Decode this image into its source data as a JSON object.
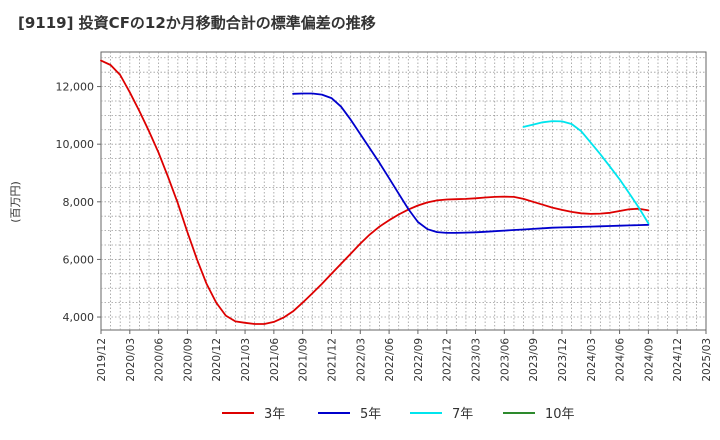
{
  "chart_data": {
    "type": "line",
    "title": "[9119]  投資CFの12か月移動合計の標準偏差の推移",
    "ylabel": "(百万円)",
    "xlabel": "",
    "ylim": [
      3550,
      13200
    ],
    "yticks": [
      4000,
      6000,
      8000,
      10000,
      12000
    ],
    "ytick_labels": [
      "4,000",
      "6,000",
      "8,000",
      "10,000",
      "12,000"
    ],
    "x_range": [
      "2019-12",
      "2025-03"
    ],
    "xtick_labels": [
      "2019/12",
      "2020/03",
      "2020/06",
      "2020/09",
      "2020/12",
      "2021/03",
      "2021/06",
      "2021/09",
      "2021/12",
      "2022/03",
      "2022/06",
      "2022/09",
      "2022/12",
      "2023/03",
      "2023/06",
      "2023/09",
      "2023/12",
      "2024/03",
      "2024/06",
      "2024/09",
      "2024/12",
      "2025/03"
    ],
    "grid": true,
    "legend_position": "bottom",
    "series": [
      {
        "name": "3年",
        "color": "#dd0000",
        "x": [
          "2019-12",
          "2020-01",
          "2020-02",
          "2020-03",
          "2020-04",
          "2020-05",
          "2020-06",
          "2020-07",
          "2020-08",
          "2020-09",
          "2020-10",
          "2020-11",
          "2020-12",
          "2021-01",
          "2021-02",
          "2021-03",
          "2021-04",
          "2021-05",
          "2021-06",
          "2021-07",
          "2021-08",
          "2021-09",
          "2021-10",
          "2021-11",
          "2021-12",
          "2022-01",
          "2022-02",
          "2022-03",
          "2022-04",
          "2022-05",
          "2022-06",
          "2022-07",
          "2022-08",
          "2022-09",
          "2022-10",
          "2022-11",
          "2022-12",
          "2023-01",
          "2023-02",
          "2023-03",
          "2023-04",
          "2023-05",
          "2023-06",
          "2023-07",
          "2023-08",
          "2023-09",
          "2023-10",
          "2023-11",
          "2023-12",
          "2024-01",
          "2024-02",
          "2024-03",
          "2024-04",
          "2024-05",
          "2024-06",
          "2024-07",
          "2024-08",
          "2024-09"
        ],
        "values": [
          12900,
          12750,
          12400,
          11800,
          11150,
          10450,
          9700,
          8850,
          7950,
          6950,
          6000,
          5150,
          4500,
          4050,
          3850,
          3800,
          3760,
          3760,
          3830,
          3980,
          4200,
          4500,
          4820,
          5150,
          5500,
          5850,
          6200,
          6550,
          6870,
          7140,
          7360,
          7560,
          7730,
          7870,
          7980,
          8050,
          8080,
          8090,
          8100,
          8120,
          8150,
          8170,
          8180,
          8170,
          8100,
          8000,
          7900,
          7800,
          7720,
          7650,
          7600,
          7580,
          7590,
          7620,
          7680,
          7740,
          7760,
          7700
        ]
      },
      {
        "name": "5年",
        "color": "#0000cc",
        "x": [
          "2021-08",
          "2021-09",
          "2021-10",
          "2021-11",
          "2021-12",
          "2022-01",
          "2022-02",
          "2022-03",
          "2022-04",
          "2022-05",
          "2022-06",
          "2022-07",
          "2022-08",
          "2022-09",
          "2022-10",
          "2022-11",
          "2022-12",
          "2023-01",
          "2023-02",
          "2023-03",
          "2023-04",
          "2023-05",
          "2023-06",
          "2023-07",
          "2023-08",
          "2023-09",
          "2023-10",
          "2023-11",
          "2023-12",
          "2024-01",
          "2024-02",
          "2024-03",
          "2024-04",
          "2024-05",
          "2024-06",
          "2024-07",
          "2024-08",
          "2024-09"
        ],
        "values": [
          11750,
          11760,
          11760,
          11720,
          11600,
          11300,
          10850,
          10350,
          9850,
          9350,
          8820,
          8280,
          7750,
          7300,
          7050,
          6950,
          6920,
          6920,
          6930,
          6940,
          6960,
          6980,
          7000,
          7020,
          7040,
          7060,
          7080,
          7100,
          7110,
          7120,
          7130,
          7140,
          7150,
          7160,
          7170,
          7180,
          7190,
          7200
        ]
      },
      {
        "name": "7年",
        "color": "#00e5ee",
        "x": [
          "2023-08",
          "2023-09",
          "2023-10",
          "2023-11",
          "2023-12",
          "2024-01",
          "2024-02",
          "2024-03",
          "2024-04",
          "2024-05",
          "2024-06",
          "2024-07",
          "2024-08",
          "2024-09"
        ],
        "values": [
          10600,
          10680,
          10760,
          10800,
          10790,
          10700,
          10450,
          10050,
          9650,
          9220,
          8780,
          8300,
          7800,
          7250
        ]
      },
      {
        "name": "10年",
        "color": "#2d8a2d",
        "x": [],
        "values": []
      }
    ]
  }
}
